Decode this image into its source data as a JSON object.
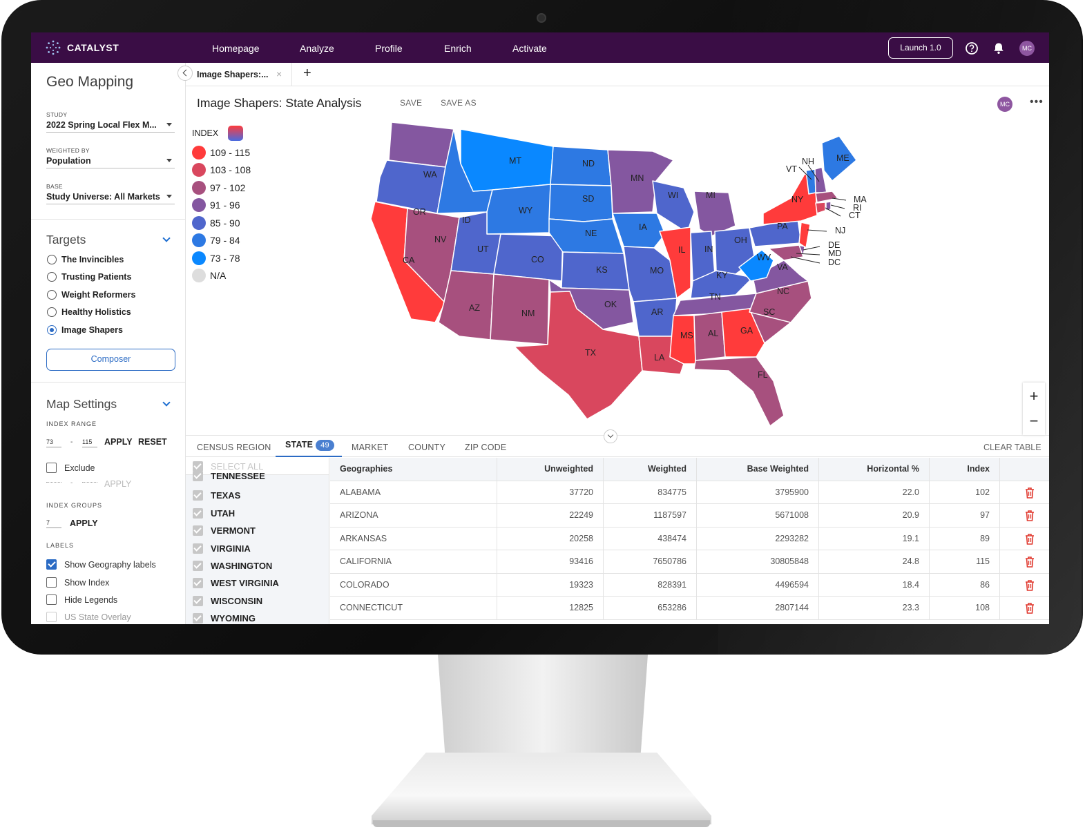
{
  "brand": "CATALYST",
  "nav": {
    "links": [
      "Homepage",
      "Analyze",
      "Profile",
      "Enrich",
      "Activate"
    ],
    "launch": "Launch 1.0",
    "avatar": "MC"
  },
  "left": {
    "title": "Geo Mapping",
    "study": {
      "label": "STUDY",
      "value": "2022 Spring Local Flex M..."
    },
    "weighted": {
      "label": "WEIGHTED BY",
      "value": "Population"
    },
    "base": {
      "label": "BASE",
      "value": "Study Universe: All Markets"
    },
    "targets_title": "Targets",
    "targets": [
      {
        "label": "The Invincibles",
        "selected": false
      },
      {
        "label": "Trusting Patients",
        "selected": false
      },
      {
        "label": "Weight Reformers",
        "selected": false
      },
      {
        "label": "Healthy Holistics",
        "selected": false
      },
      {
        "label": "Image Shapers",
        "selected": true
      }
    ],
    "composer": "Composer",
    "map_settings_title": "Map Settings",
    "index_range_label": "INDEX RANGE",
    "range_min": "73",
    "range_dash": "-",
    "range_max": "115",
    "apply": "APPLY",
    "reset": "RESET",
    "exclude": "Exclude",
    "exclude_dash": "-",
    "apply_disabled": "APPLY",
    "index_groups_label": "INDEX GROUPS",
    "index_groups_value": "7",
    "labels_label": "LABELS",
    "label_options": [
      {
        "label": "Show Geography labels",
        "checked": true
      },
      {
        "label": "Show Index",
        "checked": false
      },
      {
        "label": "Hide Legends",
        "checked": false
      },
      {
        "label": "US State Overlay",
        "checked": false
      }
    ]
  },
  "tabbar": {
    "tab": "Image Shapers:...",
    "close": "×",
    "add": "+"
  },
  "doc": {
    "title": "Image Shapers: State Analysis",
    "save": "SAVE",
    "save_as": "SAVE AS",
    "avatar": "MC",
    "more": "•••"
  },
  "legend": {
    "title": "INDEX",
    "items": [
      {
        "label": "109 - 115",
        "color": "#ff3b3b"
      },
      {
        "label": "103 - 108",
        "color": "#d9475e"
      },
      {
        "label": "97 - 102",
        "color": "#a7507e"
      },
      {
        "label": "91 - 96",
        "color": "#8457a0"
      },
      {
        "label": "85 - 90",
        "color": "#4f66cc"
      },
      {
        "label": "79 - 84",
        "color": "#2d79e3"
      },
      {
        "label": "73 - 78",
        "color": "#0a88ff"
      },
      {
        "label": "N/A",
        "color": "#dddddd"
      }
    ]
  },
  "map_labels": [
    "WA",
    "OR",
    "CA",
    "NV",
    "ID",
    "MT",
    "WY",
    "UT",
    "AZ",
    "CO",
    "NM",
    "ND",
    "SD",
    "NE",
    "KS",
    "OK",
    "TX",
    "MN",
    "IA",
    "MO",
    "AR",
    "LA",
    "WI",
    "IL",
    "MS",
    "MI",
    "IN",
    "OH",
    "KY",
    "TN",
    "AL",
    "GA",
    "FL",
    "SC",
    "NC",
    "VA",
    "WV",
    "PA",
    "NY",
    "VT",
    "NH",
    "ME",
    "MA",
    "RI",
    "CT",
    "NJ",
    "DE",
    "MD",
    "DC"
  ],
  "zoom": {
    "in": "+",
    "out": "−"
  },
  "bottom_tabs": {
    "census": "CENSUS REGION",
    "state": "STATE",
    "state_count": "49",
    "market": "MARKET",
    "county": "COUNTY",
    "zip": "ZIP CODE",
    "clear": "CLEAR TABLE"
  },
  "checklist": {
    "select_all": "SELECT ALL",
    "items": [
      "TENNESSEE",
      "TEXAS",
      "UTAH",
      "VERMONT",
      "VIRGINIA",
      "WASHINGTON",
      "WEST VIRGINIA",
      "WISCONSIN",
      "WYOMING"
    ]
  },
  "table": {
    "columns": [
      "Geographies",
      "Unweighted",
      "Weighted",
      "Base Weighted",
      "Horizontal %",
      "Index"
    ],
    "rows": [
      [
        "ALABAMA",
        "37720",
        "834775",
        "3795900",
        "22.0",
        "102"
      ],
      [
        "ARIZONA",
        "22249",
        "1187597",
        "5671008",
        "20.9",
        "97"
      ],
      [
        "ARKANSAS",
        "20258",
        "438474",
        "2293282",
        "19.1",
        "89"
      ],
      [
        "CALIFORNIA",
        "93416",
        "7650786",
        "30805848",
        "24.8",
        "115"
      ],
      [
        "COLORADO",
        "19323",
        "828391",
        "4496594",
        "18.4",
        "86"
      ],
      [
        "CONNECTICUT",
        "12825",
        "653286",
        "2807144",
        "23.3",
        "108"
      ]
    ]
  }
}
